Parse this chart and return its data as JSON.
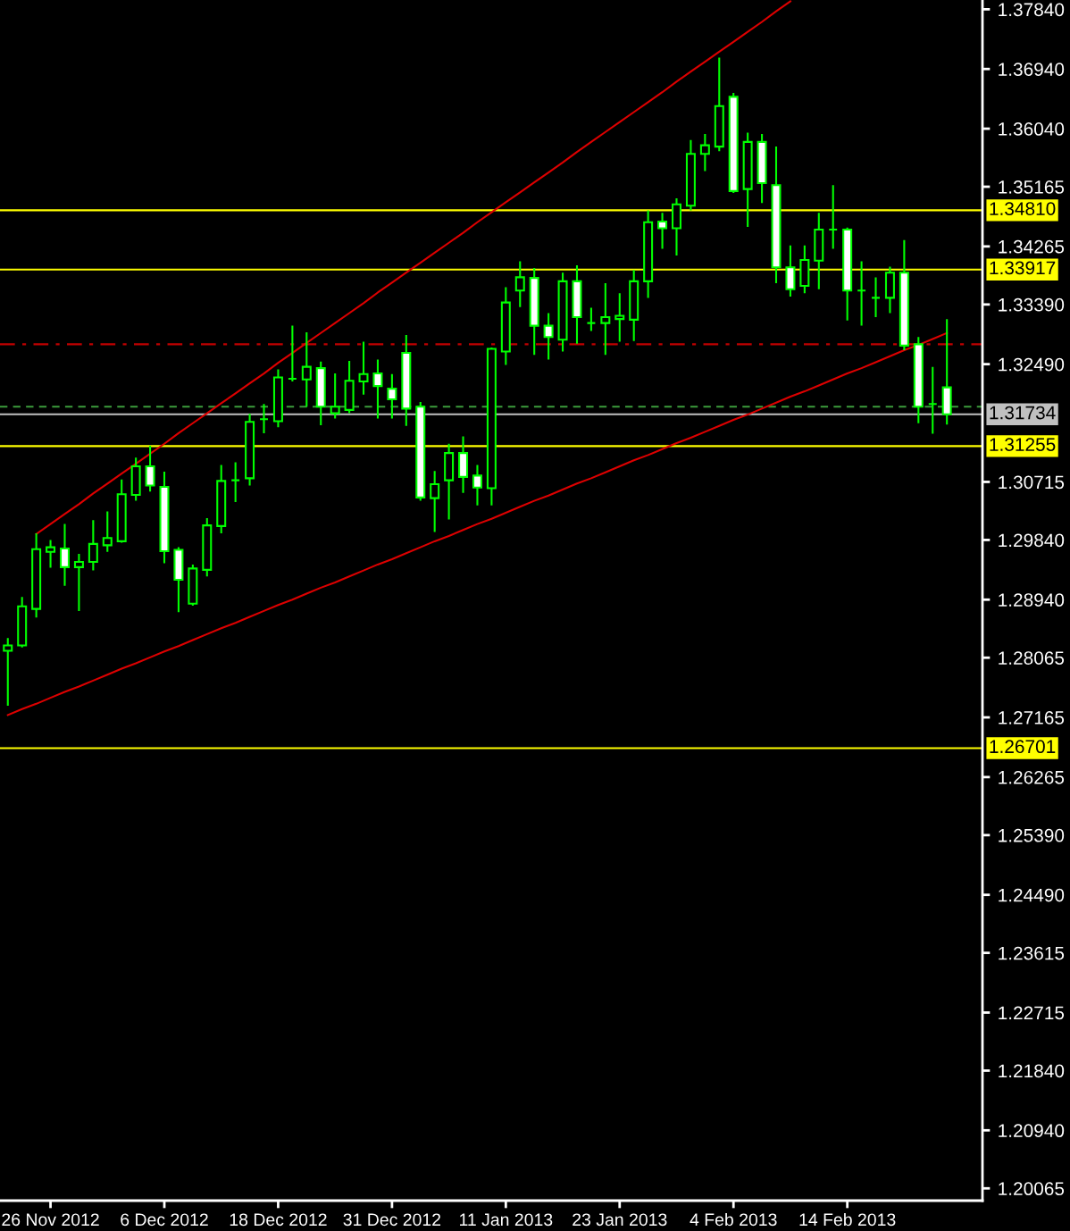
{
  "chart_data": {
    "type": "candlestick",
    "categories": [
      null,
      null,
      null,
      "26 Nov 2012",
      null,
      null,
      null,
      null,
      null,
      null,
      null,
      "6 Dec 2012",
      null,
      null,
      null,
      null,
      null,
      null,
      null,
      "18 Dec 2012",
      null,
      null,
      null,
      null,
      null,
      null,
      null,
      "31 Dec 2012",
      null,
      null,
      null,
      null,
      null,
      null,
      null,
      "11 Jan 2013",
      null,
      null,
      null,
      null,
      null,
      null,
      null,
      "23 Jan 2013",
      null,
      null,
      null,
      null,
      null,
      null,
      null,
      "4 Feb 2013",
      null,
      null,
      null,
      null,
      null,
      null,
      null,
      "14 Feb 2013",
      null,
      null,
      null,
      null,
      null,
      null,
      null
    ],
    "ohlc": [
      [
        1.2817,
        1.2836,
        1.2734,
        1.2825
      ],
      [
        1.2825,
        1.2898,
        1.2822,
        1.2884
      ],
      [
        1.288,
        1.2994,
        1.2867,
        1.297
      ],
      [
        1.2966,
        1.2984,
        1.2942,
        1.2973
      ],
      [
        1.2971,
        1.3008,
        1.2915,
        1.2943
      ],
      [
        1.2943,
        1.2963,
        1.2877,
        1.2951
      ],
      [
        1.2951,
        1.3014,
        1.2938,
        1.2978
      ],
      [
        1.2976,
        1.3027,
        1.2966,
        1.2987
      ],
      [
        1.2982,
        1.3075,
        1.298,
        1.3053
      ],
      [
        1.3052,
        1.3108,
        1.3043,
        1.3095
      ],
      [
        1.3095,
        1.3126,
        1.3057,
        1.3066
      ],
      [
        1.3064,
        1.3087,
        1.2949,
        1.2967
      ],
      [
        1.2969,
        1.2973,
        1.2875,
        1.2924
      ],
      [
        1.2888,
        1.2947,
        1.2885,
        1.2941
      ],
      [
        1.2939,
        1.3017,
        1.2929,
        1.3006
      ],
      [
        1.3005,
        1.3097,
        1.2994,
        1.3073
      ],
      [
        1.3074,
        1.3101,
        1.3041,
        1.3074
      ],
      [
        1.3077,
        1.3174,
        1.3066,
        1.3162
      ],
      [
        1.3166,
        1.3189,
        1.3145,
        1.3166
      ],
      [
        1.3163,
        1.3241,
        1.3154,
        1.3229
      ],
      [
        1.3227,
        1.3307,
        1.3223,
        1.3227
      ],
      [
        1.3226,
        1.3297,
        1.3185,
        1.3245
      ],
      [
        1.3243,
        1.3253,
        1.3157,
        1.3185
      ],
      [
        1.3175,
        1.3235,
        1.3167,
        1.3185
      ],
      [
        1.318,
        1.3254,
        1.3175,
        1.3224
      ],
      [
        1.3223,
        1.3283,
        1.3203,
        1.3234
      ],
      [
        1.3235,
        1.3256,
        1.3167,
        1.3216
      ],
      [
        1.3212,
        1.3234,
        1.3167,
        1.3196
      ],
      [
        1.3266,
        1.3293,
        1.3156,
        1.3182
      ],
      [
        1.3185,
        1.3192,
        1.3043,
        1.3048
      ],
      [
        1.3047,
        1.3088,
        1.2996,
        1.3068
      ],
      [
        1.3074,
        1.3129,
        1.3015,
        1.3115
      ],
      [
        1.3115,
        1.314,
        1.3055,
        1.3079
      ],
      [
        1.3081,
        1.3097,
        1.3036,
        1.3063
      ],
      [
        1.3062,
        1.3274,
        1.3036,
        1.3272
      ],
      [
        1.3268,
        1.3365,
        1.3248,
        1.3342
      ],
      [
        1.336,
        1.3404,
        1.3335,
        1.338
      ],
      [
        1.3379,
        1.3394,
        1.3263,
        1.3307
      ],
      [
        1.3307,
        1.3326,
        1.3256,
        1.329
      ],
      [
        1.3286,
        1.3387,
        1.3268,
        1.3374
      ],
      [
        1.3374,
        1.3398,
        1.328,
        1.332
      ],
      [
        1.3311,
        1.3334,
        1.3299,
        1.3311
      ],
      [
        1.3311,
        1.3371,
        1.3263,
        1.332
      ],
      [
        1.3317,
        1.3356,
        1.3283,
        1.3322
      ],
      [
        1.3316,
        1.3391,
        1.3284,
        1.3374
      ],
      [
        1.3374,
        1.3481,
        1.3349,
        1.3463
      ],
      [
        1.3464,
        1.3477,
        1.3423,
        1.3454
      ],
      [
        1.3454,
        1.3499,
        1.3413,
        1.349
      ],
      [
        1.3488,
        1.3587,
        1.3481,
        1.3566
      ],
      [
        1.3566,
        1.3596,
        1.354,
        1.3579
      ],
      [
        1.3577,
        1.3711,
        1.357,
        1.3638
      ],
      [
        1.3652,
        1.3658,
        1.3507,
        1.351
      ],
      [
        1.3513,
        1.3598,
        1.3456,
        1.3584
      ],
      [
        1.3584,
        1.3596,
        1.3492,
        1.3522
      ],
      [
        1.3519,
        1.3577,
        1.3371,
        1.3395
      ],
      [
        1.3395,
        1.3428,
        1.3351,
        1.3362
      ],
      [
        1.3367,
        1.3428,
        1.3356,
        1.3406
      ],
      [
        1.3405,
        1.3477,
        1.3362,
        1.3452
      ],
      [
        1.3452,
        1.3519,
        1.3423,
        1.3452
      ],
      [
        1.3452,
        1.3455,
        1.3315,
        1.336
      ],
      [
        1.336,
        1.3404,
        1.3307,
        1.336
      ],
      [
        1.3349,
        1.338,
        1.332,
        1.3349
      ],
      [
        1.3349,
        1.3396,
        1.3326,
        1.3387
      ],
      [
        1.3387,
        1.3436,
        1.327,
        1.3277
      ],
      [
        1.3279,
        1.329,
        1.316,
        1.3185
      ],
      [
        1.3189,
        1.3245,
        1.3144,
        1.3189
      ],
      [
        1.3214,
        1.3317,
        1.3158,
        1.31734
      ]
    ],
    "color": "#00ff00",
    "colors": [
      "#000000",
      "#000000",
      "#000000",
      "#000000",
      "#ffffff",
      "#000000",
      "#000000",
      "#000000",
      "#000000",
      "#000000",
      "#ffffff",
      "#ffffff",
      "#ffffff",
      "#000000",
      "#000000",
      "#000000",
      "#00ff00",
      "#000000",
      "#00ff00",
      "#000000",
      "#00ff00",
      "#000000",
      "#ffffff",
      "#000000",
      "#000000",
      "#000000",
      "#ffffff",
      "#ffffff",
      "#ffffff",
      "#ffffff",
      "#000000",
      "#000000",
      "#ffffff",
      "#ffffff",
      "#000000",
      "#000000",
      "#000000",
      "#ffffff",
      "#ffffff",
      "#000000",
      "#ffffff",
      "#00ff00",
      "#000000",
      "#000000",
      "#000000",
      "#000000",
      "#ffffff",
      "#000000",
      "#000000",
      "#000000",
      "#000000",
      "#ffffff",
      "#000000",
      "#ffffff",
      "#ffffff",
      "#ffffff",
      "#000000",
      "#000000",
      "#00ff00",
      "#ffffff",
      "#00ff00",
      "#00ff00",
      "#000000",
      "#ffffff",
      "#ffffff",
      "#00ff00",
      "#ffffff"
    ],
    "series": [
      {
        "type": "line",
        "color": "#dd0000",
        "values": [
          null,
          null,
          1.2993,
          1.3008,
          1.3023,
          1.3038,
          1.3054,
          1.3069,
          1.3084,
          1.3099,
          1.3114,
          1.3129,
          1.3145,
          1.316,
          1.3175,
          1.319,
          1.3205,
          1.322,
          1.3235,
          1.3251,
          1.3266,
          1.3281,
          1.3296,
          1.3311,
          1.3326,
          1.3341,
          1.3357,
          1.3372,
          1.3387,
          1.3402,
          1.3417,
          1.3432,
          1.3447,
          1.3463,
          1.3478,
          1.3493,
          1.3508,
          1.3523,
          1.3538,
          1.3553,
          1.3569,
          1.3584,
          1.3599,
          1.3614,
          1.3629,
          1.3644,
          1.3659,
          1.3675,
          1.369,
          1.3705,
          1.372,
          1.3735,
          1.375,
          1.3765,
          1.3781,
          1.3796,
          null,
          null,
          null,
          null,
          null,
          null,
          null,
          null,
          null,
          null,
          null
        ]
      },
      {
        "type": "line",
        "color": "#dd0000",
        "values": [
          1.272,
          1.2729,
          1.2737,
          1.2746,
          1.2755,
          1.2763,
          1.2772,
          1.2781,
          1.279,
          1.2798,
          1.2807,
          1.2816,
          1.2824,
          1.2833,
          1.2842,
          1.2851,
          1.2859,
          1.2868,
          1.2877,
          1.2886,
          1.2894,
          1.2903,
          1.2912,
          1.292,
          1.2929,
          1.2938,
          1.2947,
          1.2955,
          1.2964,
          1.2973,
          1.2982,
          1.299,
          1.2999,
          1.3008,
          1.3016,
          1.3025,
          1.3034,
          1.3043,
          1.3051,
          1.306,
          1.3069,
          1.3077,
          1.3086,
          1.3095,
          1.3104,
          1.3112,
          1.3121,
          1.313,
          1.3138,
          1.3147,
          1.3156,
          1.3165,
          1.3173,
          1.3182,
          1.3191,
          1.32,
          1.3208,
          1.3217,
          1.3226,
          1.3235,
          1.3243,
          1.3252,
          1.3261,
          1.327,
          1.3278,
          1.3287,
          1.3296
        ]
      }
    ],
    "ylim": [
      1.1988,
      1.3798
    ],
    "yticks": [
      {
        "value": 1.3784,
        "label": "1.37840"
      },
      {
        "value": 1.3694,
        "label": "1.36940"
      },
      {
        "value": 1.3604,
        "label": "1.36040"
      },
      1.35165,
      1.34265,
      {
        "value": 1.3339,
        "label": "1.33390"
      },
      {
        "value": 1.3249,
        "label": "1.32490"
      },
      1.30715,
      {
        "value": 1.2984,
        "label": "1.29840"
      },
      {
        "value": 1.2894,
        "label": "1.28940"
      },
      1.28065,
      1.27165,
      1.26265,
      {
        "value": 1.2539,
        "label": "1.25390"
      },
      {
        "value": 1.2449,
        "label": "1.24490"
      },
      1.23615,
      1.22715,
      {
        "value": 1.2184,
        "label": "1.21840"
      },
      {
        "value": 1.2094,
        "label": "1.20940"
      },
      1.20065
    ],
    "ref_lines": [
      {
        "axis": "y",
        "value": 1.3481,
        "label": "1.34810",
        "color": "#ffff00",
        "line_style": "solid"
      },
      {
        "axis": "y",
        "value": 1.33917,
        "label": "1.33917",
        "color": "#ffff00",
        "line_style": "solid"
      },
      {
        "axis": "y",
        "value": 1.3279,
        "color": "#c00000",
        "line_style": "dashdot"
      },
      {
        "axis": "y",
        "value": 1.3185,
        "color": "#3c9c3c",
        "line_style": "dashed"
      },
      {
        "axis": "y",
        "value": 1.31734,
        "label": "1.31734",
        "color": "#c0c0c0",
        "line_style": "solid"
      },
      {
        "axis": "y",
        "value": 1.31255,
        "label": "1.31255",
        "color": "#ffff00",
        "line_style": "solid"
      },
      {
        "axis": "y",
        "value": 1.26701,
        "label": "1.26701",
        "color": "#ffff00",
        "line_style": "solid"
      }
    ]
  }
}
